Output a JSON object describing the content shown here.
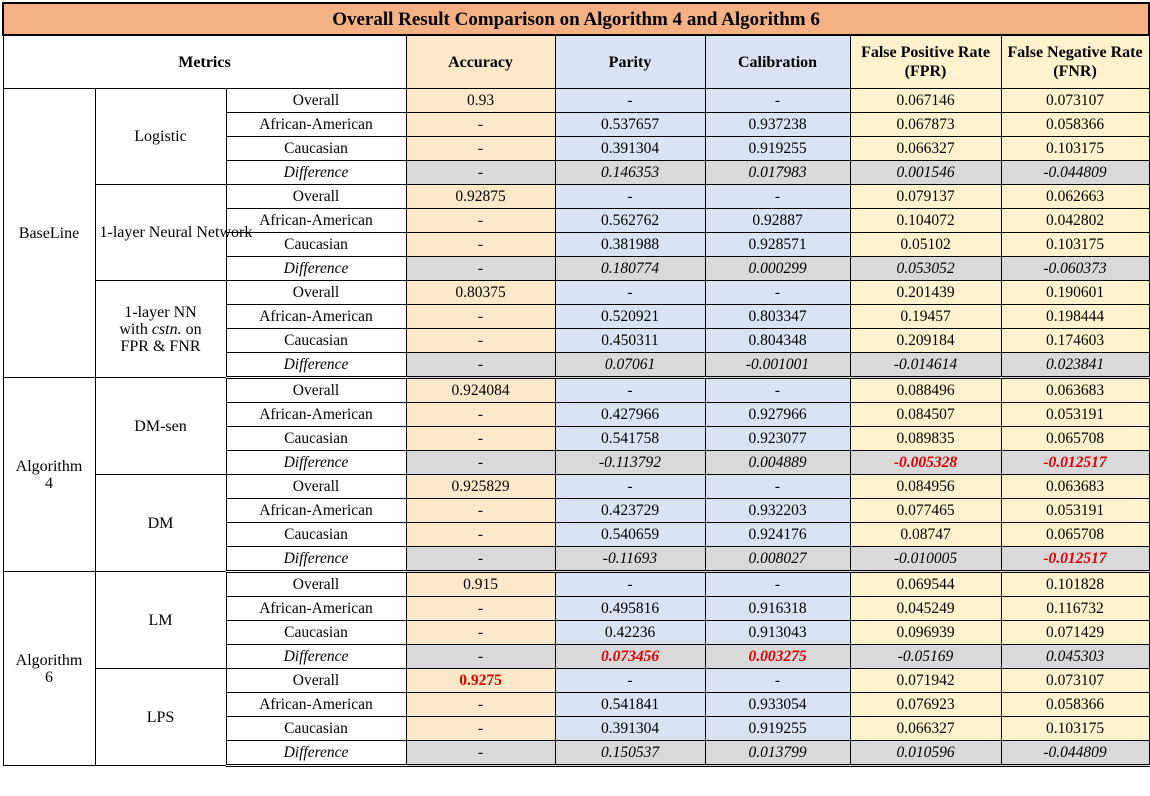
{
  "title": "Overall Result Comparison on Algorithm 4 and Algorithm 6",
  "headers": {
    "metrics": "Metrics",
    "accuracy": "Accuracy",
    "parity": "Parity",
    "calibration": "Calibration",
    "fpr": "False Positive Rate (FPR)",
    "fnr": "False Negative Rate (FNR)"
  },
  "groups": [
    {
      "label": "BaseLine",
      "models": [
        {
          "label": "Logistic",
          "rows": [
            {
              "subgroup": "Overall",
              "accuracy": "0.93",
              "parity": "-",
              "calibration": "-",
              "fpr": "0.067146",
              "fnr": "0.073107"
            },
            {
              "subgroup": "African-American",
              "accuracy": "-",
              "parity": "0.537657",
              "calibration": "0.937238",
              "fpr": "0.067873",
              "fnr": "0.058366"
            },
            {
              "subgroup": "Caucasian",
              "accuracy": "-",
              "parity": "0.391304",
              "calibration": "0.919255",
              "fpr": "0.066327",
              "fnr": "0.103175"
            },
            {
              "subgroup": "Difference",
              "accuracy": "-",
              "parity": "0.146353",
              "calibration": "0.017983",
              "fpr": "0.001546",
              "fnr": "-0.044809"
            }
          ]
        },
        {
          "label": "1-layer Neural Network",
          "rows": [
            {
              "subgroup": "Overall",
              "accuracy": "0.92875",
              "parity": "-",
              "calibration": "-",
              "fpr": "0.079137",
              "fnr": "0.062663"
            },
            {
              "subgroup": "African-American",
              "accuracy": "-",
              "parity": "0.562762",
              "calibration": "0.92887",
              "fpr": "0.104072",
              "fnr": "0.042802"
            },
            {
              "subgroup": "Caucasian",
              "accuracy": "-",
              "parity": "0.381988",
              "calibration": "0.928571",
              "fpr": "0.05102",
              "fnr": "0.103175"
            },
            {
              "subgroup": "Difference",
              "accuracy": "-",
              "parity": "0.180774",
              "calibration": "0.000299",
              "fpr": "0.053052",
              "fnr": "-0.060373"
            }
          ]
        },
        {
          "label_parts": [
            "1-layer NN",
            "with",
            "cstn.",
            "on",
            "FPR & FNR"
          ],
          "rows": [
            {
              "subgroup": "Overall",
              "accuracy": "0.80375",
              "parity": "-",
              "calibration": "-",
              "fpr": "0.201439",
              "fnr": "0.190601"
            },
            {
              "subgroup": "African-American",
              "accuracy": "-",
              "parity": "0.520921",
              "calibration": "0.803347",
              "fpr": "0.19457",
              "fnr": "0.198444"
            },
            {
              "subgroup": "Caucasian",
              "accuracy": "-",
              "parity": "0.450311",
              "calibration": "0.804348",
              "fpr": "0.209184",
              "fnr": "0.174603"
            },
            {
              "subgroup": "Difference",
              "accuracy": "-",
              "parity": "0.07061",
              "calibration": "-0.001001",
              "fpr": "-0.014614",
              "fnr": "0.023841"
            }
          ]
        }
      ]
    },
    {
      "label_parts": [
        "Algorithm",
        "4"
      ],
      "models": [
        {
          "label": "DM-sen",
          "rows": [
            {
              "subgroup": "Overall",
              "accuracy": "0.924084",
              "parity": "-",
              "calibration": "-",
              "fpr": "0.088496",
              "fnr": "0.063683"
            },
            {
              "subgroup": "African-American",
              "accuracy": "-",
              "parity": "0.427966",
              "calibration": "0.927966",
              "fpr": "0.084507",
              "fnr": "0.053191"
            },
            {
              "subgroup": "Caucasian",
              "accuracy": "-",
              "parity": "0.541758",
              "calibration": "0.923077",
              "fpr": "0.089835",
              "fnr": "0.065708"
            },
            {
              "subgroup": "Difference",
              "accuracy": "-",
              "parity": "-0.113792",
              "calibration": "0.004889",
              "fpr": "-0.005328",
              "fnr": "-0.012517"
            }
          ]
        },
        {
          "label": "DM",
          "rows": [
            {
              "subgroup": "Overall",
              "accuracy": "0.925829",
              "parity": "-",
              "calibration": "-",
              "fpr": "0.084956",
              "fnr": "0.063683"
            },
            {
              "subgroup": "African-American",
              "accuracy": "-",
              "parity": "0.423729",
              "calibration": "0.932203",
              "fpr": "0.077465",
              "fnr": "0.053191"
            },
            {
              "subgroup": "Caucasian",
              "accuracy": "-",
              "parity": "0.540659",
              "calibration": "0.924176",
              "fpr": "0.08747",
              "fnr": "0.065708"
            },
            {
              "subgroup": "Difference",
              "accuracy": "-",
              "parity": "-0.11693",
              "calibration": "0.008027",
              "fpr": "-0.010005",
              "fnr": "-0.012517"
            }
          ]
        }
      ]
    },
    {
      "label_parts": [
        "Algorithm",
        "6"
      ],
      "models": [
        {
          "label": "LM",
          "rows": [
            {
              "subgroup": "Overall",
              "accuracy": "0.915",
              "parity": "-",
              "calibration": "-",
              "fpr": "0.069544",
              "fnr": "0.101828"
            },
            {
              "subgroup": "African-American",
              "accuracy": "-",
              "parity": "0.495816",
              "calibration": "0.916318",
              "fpr": "0.045249",
              "fnr": "0.116732"
            },
            {
              "subgroup": "Caucasian",
              "accuracy": "-",
              "parity": "0.42236",
              "calibration": "0.913043",
              "fpr": "0.096939",
              "fnr": "0.071429"
            },
            {
              "subgroup": "Difference",
              "accuracy": "-",
              "parity": "0.073456",
              "calibration": "0.003275",
              "fpr": "-0.05169",
              "fnr": "0.045303"
            }
          ]
        },
        {
          "label": "LPS",
          "rows": [
            {
              "subgroup": "Overall",
              "accuracy": "0.9275",
              "parity": "-",
              "calibration": "-",
              "fpr": "0.071942",
              "fnr": "0.073107"
            },
            {
              "subgroup": "African-American",
              "accuracy": "-",
              "parity": "0.541841",
              "calibration": "0.933054",
              "fpr": "0.076923",
              "fnr": "0.058366"
            },
            {
              "subgroup": "Caucasian",
              "accuracy": "-",
              "parity": "0.391304",
              "calibration": "0.919255",
              "fpr": "0.066327",
              "fnr": "0.103175"
            },
            {
              "subgroup": "Difference",
              "accuracy": "-",
              "parity": "0.150537",
              "calibration": "0.013799",
              "fpr": "0.010596",
              "fnr": "-0.044809"
            }
          ]
        }
      ]
    }
  ],
  "highlight_color": "#e00000"
}
